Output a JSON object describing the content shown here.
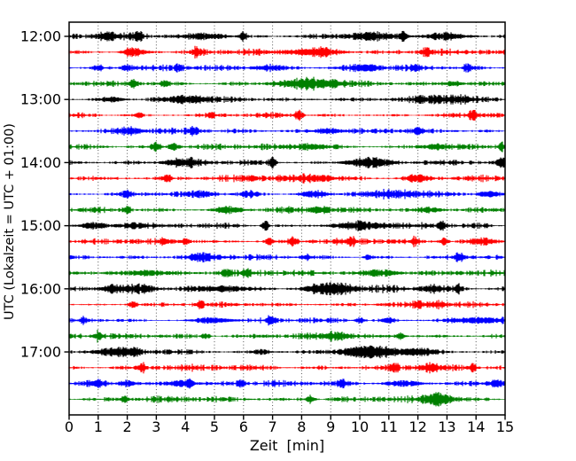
{
  "figure": {
    "background": "#ffffff"
  },
  "chart_data": {
    "type": "line",
    "variant": "seismic-helicorder-dayplot",
    "title": "",
    "xlabel": "Zeit  [min]",
    "ylabel": "UTC (Lokalzeit = UTC + 01:00)",
    "x_ticks": [
      "0",
      "1",
      "2",
      "3",
      "4",
      "5",
      "6",
      "7",
      "8",
      "9",
      "10",
      "11",
      "12",
      "13",
      "14",
      "15"
    ],
    "x_range_min": [
      0,
      15
    ],
    "row_duration_min": 15,
    "rows_per_hour": 4,
    "hour_labels": [
      "12:00",
      "13:00",
      "14:00",
      "15:00",
      "16:00",
      "17:00"
    ],
    "color_cycle": [
      "#000000",
      "#ff0000",
      "#0000ff",
      "#008000"
    ],
    "axis_color": "#000000",
    "grid": {
      "style": "dotted-vertical",
      "color": "#555555",
      "horizontal": false
    },
    "traces": [
      {
        "time": "12:00",
        "color": "#000000",
        "base": 1.6,
        "bursts": [
          [
            1.3,
            0.3,
            2.5
          ],
          [
            2.35,
            0.12,
            3.5
          ],
          [
            4.8,
            0.5,
            2.2
          ],
          [
            6.0,
            0.09,
            4.0
          ],
          [
            10.3,
            0.5,
            2.5
          ],
          [
            11.5,
            0.1,
            3.5
          ],
          [
            13.0,
            0.5,
            2.5
          ]
        ]
      },
      {
        "time": "12:15",
        "color": "#ff0000",
        "base": 1.5,
        "bursts": [
          [
            2.2,
            0.25,
            3.2
          ],
          [
            4.4,
            0.12,
            2.8
          ],
          [
            8.5,
            0.55,
            3.2
          ],
          [
            12.3,
            0.1,
            3.5
          ]
        ]
      },
      {
        "time": "12:30",
        "color": "#0000ff",
        "base": 1.35,
        "bursts": [
          [
            1.0,
            0.12,
            2.2
          ],
          [
            2.0,
            0.12,
            2.6
          ],
          [
            3.8,
            0.1,
            2.6
          ],
          [
            6.9,
            0.35,
            2.2
          ],
          [
            10.2,
            0.35,
            2.6
          ],
          [
            11.9,
            0.12,
            2.6
          ],
          [
            13.7,
            0.09,
            3.2
          ]
        ]
      },
      {
        "time": "12:45",
        "color": "#008000",
        "base": 1.45,
        "bursts": [
          [
            2.2,
            0.1,
            3.6
          ],
          [
            3.3,
            0.1,
            2.6
          ],
          [
            8.3,
            0.7,
            3.4
          ],
          [
            13.2,
            0.25,
            2.0
          ]
        ]
      },
      {
        "time": "13:00",
        "color": "#000000",
        "base": 1.55,
        "bursts": [
          [
            1.5,
            0.3,
            2.2
          ],
          [
            4.0,
            0.45,
            3.2
          ],
          [
            13.0,
            0.55,
            2.4
          ]
        ]
      },
      {
        "time": "13:15",
        "color": "#ff0000",
        "base": 1.45,
        "bursts": [
          [
            2.4,
            0.09,
            3.0
          ],
          [
            4.9,
            0.09,
            2.6
          ],
          [
            7.9,
            0.1,
            3.8
          ],
          [
            13.9,
            0.1,
            3.4
          ]
        ]
      },
      {
        "time": "13:30",
        "color": "#0000ff",
        "base": 1.35,
        "bursts": [
          [
            2.1,
            0.3,
            2.2
          ],
          [
            4.3,
            0.09,
            3.2
          ],
          [
            8.9,
            0.3,
            1.8
          ],
          [
            12.0,
            0.12,
            2.2
          ]
        ]
      },
      {
        "time": "13:45",
        "color": "#008000",
        "base": 1.45,
        "bursts": [
          [
            3.0,
            0.1,
            3.4
          ],
          [
            3.6,
            0.12,
            2.8
          ],
          [
            8.3,
            0.4,
            1.8
          ],
          [
            12.6,
            0.3,
            2.2
          ],
          [
            14.9,
            0.09,
            2.6
          ]
        ]
      },
      {
        "time": "14:00",
        "color": "#000000",
        "base": 1.6,
        "bursts": [
          [
            3.9,
            0.4,
            2.6
          ],
          [
            7.0,
            0.09,
            4.5
          ],
          [
            10.3,
            0.5,
            4.2
          ],
          [
            14.9,
            0.09,
            3.5
          ]
        ]
      },
      {
        "time": "14:15",
        "color": "#ff0000",
        "base": 1.5,
        "bursts": [
          [
            3.4,
            0.09,
            3.0
          ],
          [
            6.3,
            0.09,
            3.0
          ],
          [
            8.5,
            0.45,
            2.6
          ],
          [
            12.0,
            0.3,
            2.4
          ]
        ]
      },
      {
        "time": "14:30",
        "color": "#0000ff",
        "base": 1.4,
        "bursts": [
          [
            2.0,
            0.09,
            2.8
          ],
          [
            4.6,
            0.3,
            2.0
          ],
          [
            6.2,
            0.2,
            2.0
          ],
          [
            8.4,
            0.3,
            2.4
          ],
          [
            11.3,
            0.7,
            2.0
          ],
          [
            14.4,
            0.2,
            2.6
          ]
        ]
      },
      {
        "time": "14:45",
        "color": "#008000",
        "base": 1.5,
        "bursts": [
          [
            2.0,
            0.09,
            3.0
          ],
          [
            5.5,
            0.35,
            2.0
          ],
          [
            8.6,
            0.2,
            2.0
          ],
          [
            12.4,
            0.3,
            1.8
          ]
        ]
      },
      {
        "time": "15:00",
        "color": "#000000",
        "base": 1.7,
        "bursts": [
          [
            0.8,
            0.3,
            2.4
          ],
          [
            2.2,
            0.3,
            2.4
          ],
          [
            6.75,
            0.08,
            4.5
          ],
          [
            10.0,
            0.65,
            2.6
          ],
          [
            12.8,
            0.1,
            3.2
          ]
        ]
      },
      {
        "time": "15:15",
        "color": "#ff0000",
        "base": 1.45,
        "bursts": [
          [
            3.3,
            0.12,
            2.2
          ],
          [
            4.0,
            0.09,
            3.2
          ],
          [
            6.9,
            0.09,
            2.2
          ],
          [
            7.7,
            0.1,
            2.8
          ],
          [
            9.7,
            0.09,
            2.8
          ],
          [
            11.9,
            0.09,
            2.8
          ],
          [
            12.9,
            0.1,
            2.8
          ],
          [
            14.3,
            0.35,
            2.4
          ]
        ]
      },
      {
        "time": "15:30",
        "color": "#0000ff",
        "base": 1.35,
        "bursts": [
          [
            4.65,
            0.3,
            3.0
          ],
          [
            8.2,
            0.1,
            2.2
          ],
          [
            10.3,
            0.1,
            2.2
          ],
          [
            13.4,
            0.1,
            3.6
          ]
        ]
      },
      {
        "time": "15:45",
        "color": "#008000",
        "base": 1.5,
        "bursts": [
          [
            2.7,
            0.45,
            2.4
          ],
          [
            5.4,
            0.12,
            3.0
          ],
          [
            6.1,
            0.12,
            2.4
          ],
          [
            10.7,
            0.45,
            2.4
          ]
        ]
      },
      {
        "time": "16:00",
        "color": "#000000",
        "base": 1.7,
        "bursts": [
          [
            1.5,
            0.3,
            2.4
          ],
          [
            2.5,
            0.3,
            2.4
          ],
          [
            5.3,
            0.7,
            2.2
          ],
          [
            9.0,
            0.55,
            4.2
          ],
          [
            12.5,
            0.3,
            2.4
          ],
          [
            13.4,
            0.1,
            3.4
          ]
        ]
      },
      {
        "time": "16:15",
        "color": "#ff0000",
        "base": 1.45,
        "bursts": [
          [
            2.2,
            0.1,
            2.8
          ],
          [
            4.5,
            0.1,
            2.6
          ],
          [
            12.0,
            0.09,
            3.2
          ],
          [
            12.7,
            0.2,
            2.4
          ]
        ]
      },
      {
        "time": "16:30",
        "color": "#0000ff",
        "base": 1.4,
        "bursts": [
          [
            0.5,
            0.09,
            2.8
          ],
          [
            5.0,
            0.45,
            2.2
          ],
          [
            6.9,
            0.1,
            2.2
          ],
          [
            10.0,
            0.1,
            2.6
          ],
          [
            11.0,
            0.1,
            2.6
          ],
          [
            14.0,
            0.55,
            1.8
          ]
        ]
      },
      {
        "time": "16:45",
        "color": "#008000",
        "base": 1.45,
        "bursts": [
          [
            1.0,
            0.1,
            3.2
          ],
          [
            4.7,
            0.1,
            2.2
          ],
          [
            9.2,
            0.3,
            2.6
          ],
          [
            11.4,
            0.09,
            2.6
          ]
        ]
      },
      {
        "time": "17:00",
        "color": "#000000",
        "base": 1.6,
        "bursts": [
          [
            1.6,
            0.45,
            3.0
          ],
          [
            2.3,
            0.09,
            3.0
          ],
          [
            6.6,
            0.2,
            2.2
          ],
          [
            10.3,
            0.65,
            4.5
          ],
          [
            12.0,
            0.4,
            2.4
          ]
        ]
      },
      {
        "time": "17:15",
        "color": "#ff0000",
        "base": 1.5,
        "bursts": [
          [
            2.5,
            0.1,
            3.2
          ],
          [
            11.2,
            0.09,
            3.2
          ],
          [
            12.4,
            0.22,
            2.6
          ],
          [
            13.9,
            0.09,
            3.2
          ]
        ]
      },
      {
        "time": "17:30",
        "color": "#0000ff",
        "base": 1.35,
        "bursts": [
          [
            1.0,
            0.2,
            2.2
          ],
          [
            2.0,
            0.2,
            2.2
          ],
          [
            3.8,
            0.3,
            2.6
          ],
          [
            4.15,
            0.08,
            3.2
          ],
          [
            5.9,
            0.08,
            3.2
          ],
          [
            9.4,
            0.09,
            3.2
          ],
          [
            11.5,
            0.45,
            2.0
          ],
          [
            14.7,
            0.2,
            2.6
          ]
        ]
      },
      {
        "time": "17:45",
        "color": "#008000",
        "base": 1.45,
        "bursts": [
          [
            1.9,
            0.09,
            3.2
          ],
          [
            8.3,
            0.09,
            3.0
          ],
          [
            12.7,
            0.32,
            5.0
          ]
        ]
      }
    ]
  }
}
